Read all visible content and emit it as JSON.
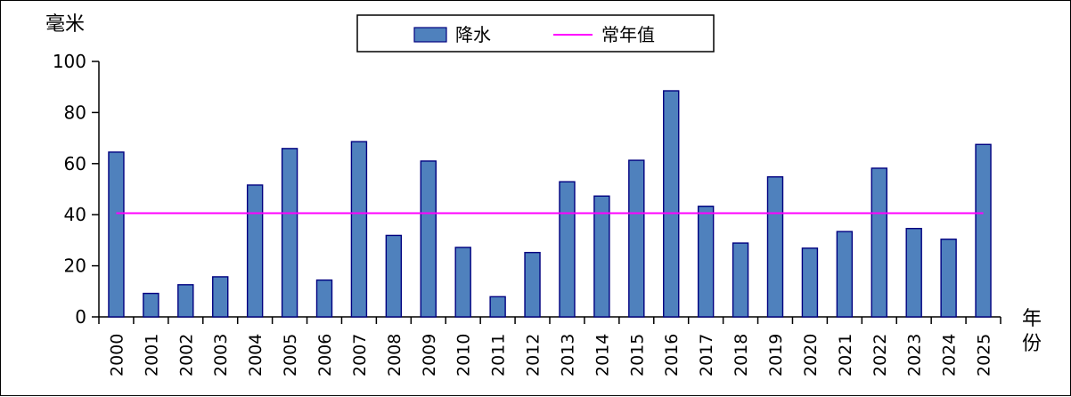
{
  "chart_data": {
    "type": "bar",
    "ylabel": "毫米",
    "xlabel": "年份",
    "ylim": [
      0,
      100
    ],
    "yticks": [
      0,
      20,
      40,
      60,
      80,
      100
    ],
    "categories": [
      "2000",
      "2001",
      "2002",
      "2003",
      "2004",
      "2005",
      "2006",
      "2007",
      "2008",
      "2009",
      "2010",
      "2011",
      "2012",
      "2013",
      "2014",
      "2015",
      "2016",
      "2017",
      "2018",
      "2019",
      "2020",
      "2021",
      "2022",
      "2023",
      "2024",
      "2025"
    ],
    "series": [
      {
        "name": "降水",
        "color": "#4F81BD",
        "values": [
          64.5,
          9.2,
          12.6,
          15.7,
          51.6,
          65.9,
          14.4,
          68.6,
          31.9,
          61.0,
          27.2,
          7.9,
          25.2,
          52.9,
          47.3,
          61.3,
          88.5,
          43.3,
          28.9,
          54.8,
          26.9,
          33.4,
          58.2,
          34.6,
          30.4,
          67.5
        ]
      }
    ],
    "reference_lines": [
      {
        "name": "常年值",
        "value": 40.6,
        "color": "#FF00FF"
      }
    ],
    "legend": {
      "position": "top-center"
    },
    "grid": false
  }
}
